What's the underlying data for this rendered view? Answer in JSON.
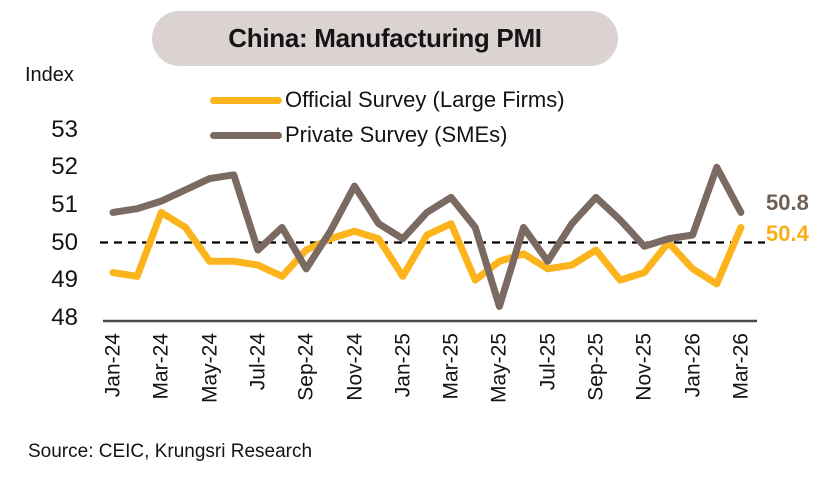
{
  "title": "China: Manufacturing PMI",
  "y_axis_title": "Index",
  "source": "Source: CEIC, Krungsri Research",
  "legend": {
    "items": [
      {
        "label": "Official Survey (Large Firms)",
        "color": "#FBB41C"
      },
      {
        "label": "Private Survey (SMEs)",
        "color": "#7A6A62"
      }
    ]
  },
  "end_labels": [
    {
      "text": "50.8",
      "color": "#6F6054",
      "series": "Private Survey (SMEs)",
      "y_value": 50.8
    },
    {
      "text": "50.4",
      "color": "#F7AE17",
      "series": "Official Survey (Large Firms)",
      "y_value": 50.4
    }
  ],
  "chart_data": {
    "type": "line",
    "title": "China: Manufacturing PMI",
    "ylabel": "Index",
    "x": [
      "Jan-24",
      "Feb-24",
      "Mar-24",
      "Apr-24",
      "May-24",
      "Jun-24",
      "Jul-24",
      "Aug-24",
      "Sep-24",
      "Oct-24",
      "Nov-24",
      "Dec-24",
      "Jan-25",
      "Feb-25",
      "Mar-25",
      "Apr-25",
      "May-25",
      "Jun-25",
      "Jul-25",
      "Aug-25",
      "Sep-25",
      "Oct-25",
      "Nov-25",
      "Dec-25",
      "Jan-26",
      "Feb-26",
      "Mar-26"
    ],
    "x_tick_labels": [
      "Jan-24",
      "Mar-24",
      "May-24",
      "Jul-24",
      "Sep-24",
      "Nov-24",
      "Jan-25",
      "Mar-25",
      "May-25",
      "Jul-25",
      "Sep-25",
      "Nov-25",
      "Jan-26",
      "Mar-26"
    ],
    "y_ticks": [
      53,
      52,
      51,
      50,
      49,
      48
    ],
    "ylim": [
      47.8,
      53.4
    ],
    "grid": false,
    "legend_position": "top",
    "reference_line_y": 50,
    "series": [
      {
        "name": "Official Survey (Large Firms)",
        "color": "#FBB41C",
        "values": [
          49.2,
          49.1,
          50.8,
          50.4,
          49.5,
          49.5,
          49.4,
          49.1,
          49.8,
          50.1,
          50.3,
          50.1,
          49.1,
          50.2,
          50.5,
          49.0,
          49.5,
          49.7,
          49.3,
          49.4,
          49.8,
          49.0,
          49.2,
          50.0,
          49.3,
          48.9,
          50.4
        ]
      },
      {
        "name": "Private Survey (SMEs)",
        "color": "#7A6A62",
        "values": [
          50.8,
          50.9,
          51.1,
          51.4,
          51.7,
          51.8,
          49.8,
          50.4,
          49.3,
          50.3,
          51.5,
          50.5,
          50.1,
          50.8,
          51.2,
          50.4,
          48.3,
          50.4,
          49.5,
          50.5,
          51.2,
          50.6,
          49.9,
          50.1,
          50.2,
          52.0,
          50.8
        ]
      }
    ]
  },
  "styles": {
    "pill_bg": "#DBD3D1",
    "axis_line_color": "#4A4A4A",
    "reference_line_color": "#000000"
  }
}
